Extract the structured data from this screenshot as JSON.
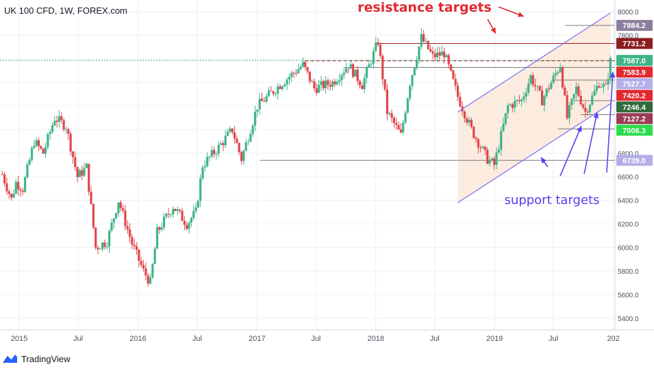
{
  "chart_title": "UK 100 CFD, 1W, FOREX.com",
  "branding": {
    "logo_text": "TradingView",
    "logo_icon": "tradingview-logo-icon"
  },
  "colors": {
    "up": "#3fb489",
    "down": "#e0464b",
    "channel": "#7a6df0",
    "channel_fill": "#fbe9da",
    "resistance_text": "#e0292f",
    "support_text": "#5a3ef0"
  },
  "chart_data": {
    "type": "candlestick",
    "timeframe": "1W",
    "instrument": "UK 100 CFD",
    "source": "FOREX.com",
    "y_axis": {
      "range": [
        5300,
        8100
      ],
      "tick_labels": [
        "5400.0",
        "5600.0",
        "5800.0",
        "6000.0",
        "6200.0",
        "6400.0",
        "6600.0",
        "6800.0",
        "7000.0",
        "7200.0",
        "7400.0",
        "7600.0",
        "7800.0",
        "8000.0"
      ],
      "ticks": [
        5400,
        5600,
        5800,
        6000,
        6200,
        6400,
        6600,
        6800,
        7000,
        7200,
        7400,
        7600,
        7800,
        8000
      ]
    },
    "x_axis": {
      "tick_labels": [
        "2015",
        "Jul",
        "2016",
        "Jul",
        "2017",
        "Jul",
        "2018",
        "Jul",
        "2019",
        "Jul",
        "202"
      ],
      "ticks": [
        "2015-01-01",
        "2015-07-01",
        "2016-01-01",
        "2016-07-01",
        "2017-01-01",
        "2017-07-01",
        "2018-01-01",
        "2018-07-01",
        "2019-01-01",
        "2019-07-01",
        "2020-01-01"
      ]
    },
    "anchors": [
      {
        "date": "2014-11-10",
        "close": 6620
      },
      {
        "date": "2014-12-08",
        "close": 6410
      },
      {
        "date": "2014-12-22",
        "close": 6550
      },
      {
        "date": "2015-01-12",
        "close": 6500
      },
      {
        "date": "2015-02-16",
        "close": 6900
      },
      {
        "date": "2015-03-16",
        "close": 6800
      },
      {
        "date": "2015-04-20",
        "close": 7100
      },
      {
        "date": "2015-05-25",
        "close": 7030
      },
      {
        "date": "2015-06-29",
        "close": 6600
      },
      {
        "date": "2015-07-27",
        "close": 6680
      },
      {
        "date": "2015-08-24",
        "close": 6000
      },
      {
        "date": "2015-09-28",
        "close": 6050
      },
      {
        "date": "2015-11-02",
        "close": 6400
      },
      {
        "date": "2015-12-14",
        "close": 6030
      },
      {
        "date": "2016-01-18",
        "close": 5800
      },
      {
        "date": "2016-02-08",
        "close": 5700
      },
      {
        "date": "2016-02-29",
        "close": 6130
      },
      {
        "date": "2016-04-18",
        "close": 6350
      },
      {
        "date": "2016-05-30",
        "close": 6200
      },
      {
        "date": "2016-06-27",
        "close": 6300
      },
      {
        "date": "2016-07-18",
        "close": 6700
      },
      {
        "date": "2016-09-05",
        "close": 6850
      },
      {
        "date": "2016-10-17",
        "close": 7000
      },
      {
        "date": "2016-11-14",
        "close": 6750
      },
      {
        "date": "2017-01-02",
        "close": 7200
      },
      {
        "date": "2017-03-20",
        "close": 7400
      },
      {
        "date": "2017-05-22",
        "close": 7550
      },
      {
        "date": "2017-06-26",
        "close": 7350
      },
      {
        "date": "2017-08-21",
        "close": 7400
      },
      {
        "date": "2017-10-09",
        "close": 7550
      },
      {
        "date": "2017-11-20",
        "close": 7380
      },
      {
        "date": "2018-01-08",
        "close": 7750
      },
      {
        "date": "2018-02-05",
        "close": 7150
      },
      {
        "date": "2018-03-19",
        "close": 6950
      },
      {
        "date": "2018-04-16",
        "close": 7400
      },
      {
        "date": "2018-05-21",
        "close": 7780
      },
      {
        "date": "2018-06-25",
        "close": 7620
      },
      {
        "date": "2018-07-30",
        "close": 7650
      },
      {
        "date": "2018-09-10",
        "close": 7280
      },
      {
        "date": "2018-10-22",
        "close": 7000
      },
      {
        "date": "2018-12-10",
        "close": 6750
      },
      {
        "date": "2018-12-31",
        "close": 6700
      },
      {
        "date": "2019-02-11",
        "close": 7200
      },
      {
        "date": "2019-03-25",
        "close": 7250
      },
      {
        "date": "2019-04-22",
        "close": 7450
      },
      {
        "date": "2019-05-27",
        "close": 7250
      },
      {
        "date": "2019-07-22",
        "close": 7550
      },
      {
        "date": "2019-08-12",
        "close": 7100
      },
      {
        "date": "2019-09-09",
        "close": 7350
      },
      {
        "date": "2019-10-07",
        "close": 7150
      },
      {
        "date": "2019-11-18",
        "close": 7400
      },
      {
        "date": "2019-12-09",
        "close": 7350
      },
      {
        "date": "2019-12-23",
        "close": 7580
      }
    ],
    "price_levels": [
      {
        "value": 7884.2,
        "label": "7884.2",
        "color": "#8b7f9e"
      },
      {
        "value": 7731.2,
        "label": "7731.2",
        "color": "#8b1e1e"
      },
      {
        "value": 7587.0,
        "label": "7587.0",
        "color": "#3fb489"
      },
      {
        "value": 7583.9,
        "label": "7583.9",
        "color": "#e0292f"
      },
      {
        "value": 7527.7,
        "label": "7527.7",
        "color": "#b3aee8"
      },
      {
        "value": 7420.2,
        "label": "7420.2",
        "color": "#e0292f"
      },
      {
        "value": 7246.4,
        "label": "7246.4",
        "color": "#2f6b3d"
      },
      {
        "value": 7127.2,
        "label": "7127.2",
        "color": "#9b3b55"
      },
      {
        "value": 7006.3,
        "label": "7006.3",
        "color": "#2bdc4a"
      },
      {
        "value": 6739.0,
        "label": "6739.0",
        "color": "#b3aee8"
      }
    ],
    "channel": {
      "upper": [
        {
          "date": "2018-09-10",
          "value": 7150
        },
        {
          "date": "2019-12-23",
          "value": 7990
        }
      ],
      "lower": [
        {
          "date": "2018-09-10",
          "value": 6380
        },
        {
          "date": "2019-12-23",
          "value": 7220
        }
      ]
    },
    "annotations": {
      "resistance": "resistance targets",
      "support": "support targets"
    }
  }
}
